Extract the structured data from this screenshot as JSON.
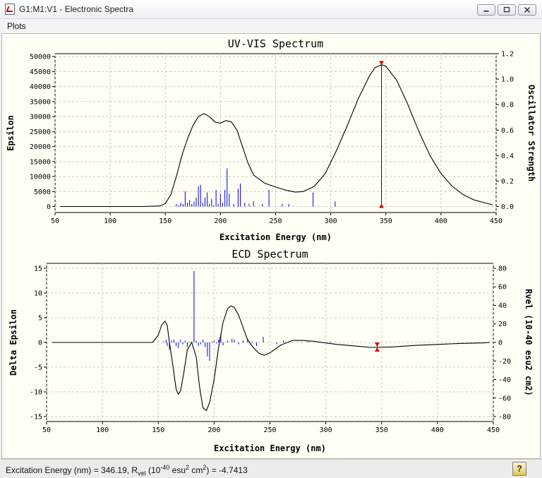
{
  "window": {
    "title": "G1:M1:V1 - Electronic Spectra"
  },
  "menu": {
    "items": [
      "Plots"
    ]
  },
  "status": {
    "prefix": "Excitation Energy (nm) = 346.19, R",
    "sub": "vel",
    "mid1": " (10",
    "sup1": "-40",
    "mid2": " esu",
    "sup2": "2",
    "suffix": " cm",
    "sup3": "2",
    "end": ") = -4.7413"
  },
  "colors": {
    "curve": "#000000",
    "sticks": "#0000e0",
    "marker": "#e00000",
    "plot_bg": "#fffff5",
    "grid": "#c8c8c8"
  },
  "chart_data": [
    {
      "type": "line",
      "title": "UV-VIS Spectrum",
      "xlabel": "Excitation Energy (nm)",
      "ylabel": "Epsilon",
      "y2label": "Oscillator Strength",
      "xlim": [
        50,
        450
      ],
      "ylim": [
        -2000,
        51000
      ],
      "y2lim": [
        -0.0471,
        1.2
      ],
      "xticks": [
        50,
        100,
        150,
        200,
        250,
        300,
        350,
        400,
        450
      ],
      "yticks": [
        0,
        5000,
        10000,
        15000,
        20000,
        25000,
        30000,
        35000,
        40000,
        45000,
        50000
      ],
      "y2ticks": [
        "0.0",
        "0.2",
        "0.4",
        "0.6",
        "0.8",
        "1.0",
        "1.2"
      ],
      "grid": true,
      "series": [
        {
          "kind": "curve",
          "x": [
            55,
            100,
            130,
            145,
            150,
            155,
            160,
            165,
            170,
            175,
            180,
            185,
            190,
            195,
            200,
            205,
            210,
            215,
            220,
            225,
            230,
            240,
            250,
            260,
            268,
            275,
            285,
            295,
            305,
            315,
            325,
            335,
            340,
            346,
            350,
            360,
            370,
            380,
            390,
            400,
            410,
            420,
            430,
            440,
            447
          ],
          "y": [
            0,
            0,
            0,
            200,
            1000,
            4000,
            10000,
            17000,
            22500,
            27000,
            30000,
            31000,
            30000,
            28200,
            27800,
            28700,
            28200,
            25500,
            20000,
            14500,
            10500,
            7800,
            6500,
            5400,
            4800,
            5000,
            6700,
            11000,
            18500,
            27000,
            36000,
            43500,
            46300,
            47300,
            46800,
            42000,
            34000,
            25000,
            17000,
            11000,
            6800,
            4000,
            2200,
            1200,
            600
          ]
        },
        {
          "kind": "sticks",
          "x": [
            160,
            162,
            164,
            166,
            168,
            170,
            172,
            174,
            176,
            178,
            180,
            182,
            184,
            186,
            188,
            190,
            192,
            194,
            196,
            198,
            200,
            202,
            204,
            206,
            208,
            212,
            216,
            218,
            222,
            226,
            230,
            238,
            244,
            256,
            262,
            284,
            304,
            346
          ],
          "y": [
            0.02,
            0.01,
            0.03,
            0.02,
            0.12,
            0.03,
            0.05,
            0.02,
            0.04,
            0.07,
            0.16,
            0.17,
            0.03,
            0.07,
            0.11,
            0.02,
            0.06,
            0.01,
            0.13,
            0.02,
            0.1,
            0.03,
            0.13,
            0.3,
            0.1,
            0.02,
            0.14,
            0.18,
            0.03,
            0.02,
            0.04,
            0.02,
            0.13,
            0.02,
            0.02,
            0.11,
            0.04,
            1.12
          ]
        }
      ],
      "marker": {
        "x": 346,
        "y2": 1.12
      }
    },
    {
      "type": "line",
      "title": "ECD Spectrum",
      "xlabel": "Excitation Energy (nm)",
      "ylabel": "Delta Epsilon",
      "y2label": "Rvel (10-40 esu2 cm2)",
      "xlim": [
        50,
        450
      ],
      "ylim": [
        -16,
        16
      ],
      "y2lim": [
        -85.33,
        85.33
      ],
      "xticks": [
        50,
        100,
        150,
        200,
        250,
        300,
        350,
        400,
        450
      ],
      "yticks": [
        -15,
        -10,
        -5,
        0,
        5,
        10,
        15
      ],
      "y2ticks": [
        -80,
        -60,
        -40,
        -20,
        0,
        20,
        40,
        60,
        80
      ],
      "grid": true,
      "series": [
        {
          "kind": "curve",
          "x": [
            55,
            100,
            145,
            150,
            153,
            156,
            158,
            160,
            163,
            166,
            168,
            170,
            173,
            176,
            180,
            184,
            187,
            190,
            193,
            196,
            200,
            204,
            208,
            212,
            215,
            218,
            222,
            226,
            230,
            235,
            240,
            245,
            250,
            260,
            270,
            280,
            290,
            300,
            310,
            320,
            330,
            340,
            346,
            360,
            380,
            400,
            420,
            440,
            447
          ],
          "y": [
            0,
            0,
            0,
            1.5,
            3.5,
            4.3,
            3.5,
            0,
            -4.5,
            -9.5,
            -10.5,
            -9.8,
            -6,
            -1.5,
            0,
            -3,
            -9,
            -13.2,
            -13.8,
            -12.2,
            -7.5,
            -1,
            4,
            6.8,
            7.4,
            7.1,
            5.5,
            3,
            0.5,
            -1,
            -2.2,
            -2.6,
            -2.1,
            -0.5,
            0.4,
            0.4,
            0.2,
            -0.1,
            -0.4,
            -0.6,
            -0.8,
            -1,
            -1,
            -0.9,
            -0.6,
            -0.4,
            -0.2,
            -0.1,
            0
          ]
        },
        {
          "kind": "sticks",
          "x": [
            155,
            157,
            158,
            160,
            162,
            164,
            166,
            168,
            170,
            172,
            174,
            176,
            178,
            180,
            182,
            184,
            186,
            188,
            190,
            192,
            194,
            196,
            198,
            200,
            202,
            204,
            206,
            208,
            212,
            216,
            218,
            222,
            226,
            230,
            234,
            238,
            244,
            256,
            262,
            284,
            304,
            346
          ],
          "y": [
            1,
            3,
            -4,
            -8,
            2,
            3,
            -4,
            -6,
            3,
            -2,
            2,
            -5,
            1,
            1,
            77,
            2,
            -4,
            -2,
            3,
            -5,
            -15,
            -20,
            1,
            2,
            -1,
            3,
            9,
            -3,
            2,
            4,
            3,
            -2,
            2,
            4,
            1,
            -4,
            6,
            -2,
            2,
            1,
            1,
            -4.7
          ]
        }
      ],
      "marker": {
        "x": 346,
        "y": -1
      }
    }
  ]
}
